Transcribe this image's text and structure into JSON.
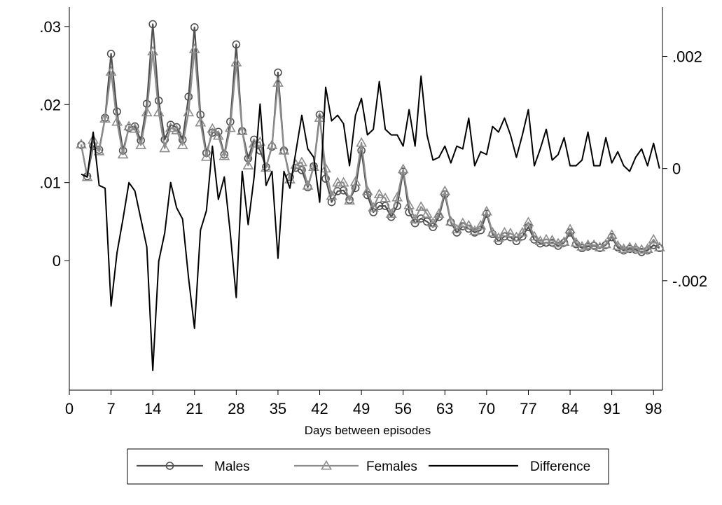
{
  "chart_data": {
    "type": "line",
    "title": "",
    "xlabel": "Days between episodes",
    "left_axis": {
      "ylim": [
        -0.0166,
        0.0325
      ],
      "ticks": [
        {
          "value": 0.03,
          "label": ".03"
        },
        {
          "value": 0.02,
          "label": ".02"
        },
        {
          "value": 0.01,
          "label": ".01"
        },
        {
          "value": 0,
          "label": "0"
        }
      ]
    },
    "right_axis": {
      "ylim": [
        -0.00395,
        0.00288
      ],
      "ticks": [
        {
          "value": 0.002,
          "label": ".002"
        },
        {
          "value": 0,
          "label": "0"
        },
        {
          "value": -0.002,
          "label": "-.002"
        }
      ]
    },
    "xlim": [
      0,
      99.5
    ],
    "x_ticks": [
      "0",
      "7",
      "14",
      "21",
      "28",
      "35",
      "42",
      "49",
      "56",
      "63",
      "70",
      "77",
      "84",
      "91",
      "98"
    ],
    "x": [
      2,
      3,
      4,
      5,
      6,
      7,
      8,
      9,
      10,
      11,
      12,
      13,
      14,
      15,
      16,
      17,
      18,
      19,
      20,
      21,
      22,
      23,
      24,
      25,
      26,
      27,
      28,
      29,
      30,
      31,
      32,
      33,
      34,
      35,
      36,
      37,
      38,
      39,
      40,
      41,
      42,
      43,
      44,
      45,
      46,
      47,
      48,
      49,
      50,
      51,
      52,
      53,
      54,
      55,
      56,
      57,
      58,
      59,
      60,
      61,
      62,
      63,
      64,
      65,
      66,
      67,
      68,
      69,
      70,
      71,
      72,
      73,
      74,
      75,
      76,
      77,
      78,
      79,
      80,
      81,
      82,
      83,
      84,
      85,
      86,
      87,
      88,
      89,
      90,
      91,
      92,
      93,
      94,
      95,
      96,
      97,
      98,
      99
    ],
    "series": [
      {
        "name": "Males",
        "axis": "left",
        "color": "#505050",
        "marker": "circle",
        "values": [
          0.0148,
          0.0108,
          0.0147,
          0.0142,
          0.0183,
          0.0265,
          0.0191,
          0.0141,
          0.017,
          0.0172,
          0.0154,
          0.0201,
          0.0303,
          0.0205,
          0.0155,
          0.0174,
          0.0171,
          0.0155,
          0.021,
          0.0299,
          0.0187,
          0.0138,
          0.0164,
          0.0165,
          0.0136,
          0.0178,
          0.0277,
          0.0166,
          0.0131,
          0.0155,
          0.0141,
          0.012,
          0.0146,
          0.0241,
          0.0141,
          0.0107,
          0.0119,
          0.0116,
          0.0094,
          0.0121,
          0.0187,
          0.0105,
          0.0075,
          0.0089,
          0.009,
          0.0078,
          0.0093,
          0.0141,
          0.0084,
          0.0062,
          0.007,
          0.007,
          0.0056,
          0.007,
          0.0114,
          0.0062,
          0.0048,
          0.0054,
          0.005,
          0.0043,
          0.0056,
          0.0085,
          0.0049,
          0.0036,
          0.0044,
          0.0041,
          0.0036,
          0.0039,
          0.006,
          0.0034,
          0.0025,
          0.0031,
          0.003,
          0.0025,
          0.0031,
          0.0043,
          0.0027,
          0.0022,
          0.0023,
          0.0023,
          0.0019,
          0.0023,
          0.0036,
          0.0021,
          0.0016,
          0.0018,
          0.0019,
          0.0016,
          0.002,
          0.003,
          0.0017,
          0.0013,
          0.0015,
          0.0014,
          0.0011,
          0.0013,
          0.002,
          0.0016
        ]
      },
      {
        "name": "Females",
        "axis": "left",
        "color": "#8c8c8c",
        "marker": "triangle",
        "values": [
          0.0149,
          0.0107,
          0.0155,
          0.014,
          0.0182,
          0.0242,
          0.0178,
          0.0136,
          0.0172,
          0.0169,
          0.0148,
          0.019,
          0.0268,
          0.019,
          0.0144,
          0.017,
          0.0167,
          0.0148,
          0.019,
          0.0271,
          0.0177,
          0.0133,
          0.0169,
          0.016,
          0.0134,
          0.017,
          0.0254,
          0.0166,
          0.0122,
          0.015,
          0.0152,
          0.0119,
          0.0148,
          0.0228,
          0.0141,
          0.0104,
          0.0123,
          0.0126,
          0.0096,
          0.012,
          0.0183,
          0.0118,
          0.0083,
          0.01,
          0.01,
          0.0077,
          0.0101,
          0.0151,
          0.0089,
          0.0068,
          0.0085,
          0.008,
          0.006,
          0.0081,
          0.0117,
          0.0071,
          0.0053,
          0.0069,
          0.006,
          0.0048,
          0.006,
          0.0089,
          0.005,
          0.004,
          0.0048,
          0.0045,
          0.0038,
          0.0045,
          0.0063,
          0.0036,
          0.0029,
          0.0036,
          0.0035,
          0.003,
          0.0036,
          0.0049,
          0.0031,
          0.0025,
          0.0027,
          0.0026,
          0.0022,
          0.0024,
          0.004,
          0.0023,
          0.0018,
          0.002,
          0.002,
          0.0017,
          0.0021,
          0.0033,
          0.0019,
          0.0015,
          0.0017,
          0.0016,
          0.0014,
          0.0015,
          0.0027,
          0.0017
        ]
      },
      {
        "name": "Difference",
        "axis": "right",
        "color": "#000000",
        "marker": "none",
        "values": [
          -0.0001,
          -0.00015,
          0.00065,
          -0.0003,
          -0.00035,
          -0.00245,
          -0.0015,
          -0.0009,
          -0.00025,
          -0.0004,
          -0.0009,
          -0.0014,
          -0.0036,
          -0.00165,
          -0.00115,
          -0.00025,
          -0.0007,
          -0.0009,
          -0.00195,
          -0.00285,
          -0.0011,
          -0.00075,
          0.0004,
          -0.00055,
          -0.00015,
          -0.00115,
          -0.0023,
          -5e-05,
          -0.001,
          -0.00015,
          0.00115,
          -0.0003,
          -5e-05,
          -0.0016,
          -5e-05,
          -0.00035,
          0.0003,
          0.00095,
          0.00035,
          0.0002,
          -0.0006,
          0.00145,
          0.00085,
          0.00095,
          0.0008,
          5e-05,
          0.00095,
          0.00125,
          0.0006,
          0.0007,
          0.00155,
          0.0007,
          0.0006,
          0.0006,
          0.0004,
          0.00105,
          0.0004,
          0.00165,
          0.0006,
          0.00015,
          0.0002,
          0.0004,
          0.0001,
          0.0004,
          0.00035,
          0.0009,
          5e-05,
          0.0003,
          0.00025,
          0.00075,
          0.00065,
          0.0009,
          0.0006,
          0.0002,
          0.0006,
          0.00105,
          5e-05,
          0.00035,
          0.0007,
          0.00015,
          0.00025,
          0.00055,
          5e-05,
          5e-05,
          0.00015,
          0.00065,
          5e-05,
          5e-05,
          0.00055,
          0.0001,
          0.0003,
          5e-05,
          -5e-05,
          0.0002,
          0.00035,
          5e-05,
          0.00045,
          0.0
        ]
      }
    ],
    "legend": {
      "position": "bottom",
      "entries": [
        "Males",
        "Females",
        "Difference"
      ]
    },
    "grid": false
  }
}
